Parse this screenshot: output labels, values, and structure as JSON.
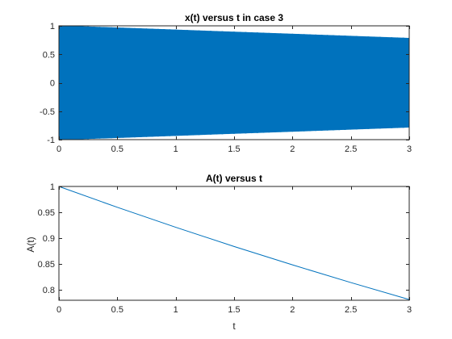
{
  "chart_data": [
    {
      "type": "line",
      "title": "x(t) versus t in case 3",
      "xlabel": "",
      "ylabel": "",
      "xlim": [
        0,
        3
      ],
      "ylim": [
        -1,
        1
      ],
      "x_ticks": [
        0,
        0.5,
        1,
        1.5,
        2,
        2.5,
        3
      ],
      "x_tick_labels": [
        "0",
        "0.5",
        "1",
        "1.5",
        "2",
        "2.5",
        "3"
      ],
      "y_ticks": [
        -1,
        -0.5,
        0,
        0.5,
        1
      ],
      "y_tick_labels": [
        "-1",
        "-0.5",
        "0",
        "0.5",
        "1"
      ],
      "grid": false,
      "color": "#0072BD",
      "series": [
        {
          "description_type": "decaying high-frequency oscillation filling envelope",
          "x": [
            0,
            3
          ],
          "envelope_upper": [
            1.0,
            0.78
          ],
          "envelope_lower": [
            -1.0,
            -0.78
          ]
        }
      ]
    },
    {
      "type": "line",
      "title": "A(t) versus t",
      "xlabel": "t",
      "ylabel": "A(t)",
      "xlim": [
        0,
        3
      ],
      "ylim": [
        0.78,
        1
      ],
      "x_ticks": [
        0,
        0.5,
        1,
        1.5,
        2,
        2.5,
        3
      ],
      "x_tick_labels": [
        "0",
        "0.5",
        "1",
        "1.5",
        "2",
        "2.5",
        "3"
      ],
      "y_ticks": [
        0.8,
        0.85,
        0.9,
        0.95,
        1
      ],
      "y_tick_labels": [
        "0.8",
        "0.85",
        "0.9",
        "0.95",
        "1"
      ],
      "grid": false,
      "color": "#0072BD",
      "series": [
        {
          "x": [
            0,
            0.5,
            1,
            1.5,
            2,
            2.5,
            3
          ],
          "values": [
            1.0,
            0.9597,
            0.9211,
            0.884,
            0.8484,
            0.8142,
            0.7814
          ]
        }
      ]
    }
  ]
}
